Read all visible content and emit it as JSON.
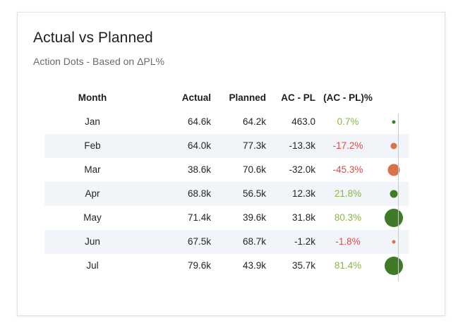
{
  "title": "Actual vs Planned",
  "subtitle": "Action Dots - Based on ΔPL%",
  "colors": {
    "positive_text": "#8ab44a",
    "negative_text": "#e04848",
    "positive_dot": "#3e7b27",
    "negative_dot": "#d9714a",
    "row_band": "#f1f5fa"
  },
  "chart_data": {
    "type": "table",
    "columns": [
      "Month",
      "Actual",
      "Planned",
      "AC - PL",
      "(AC - PL)%",
      ""
    ],
    "rows": [
      {
        "month": "Jan",
        "actual": "64.6k",
        "planned": "64.2k",
        "diff": "463.0",
        "pct": "0.7%",
        "pct_value": 0.7
      },
      {
        "month": "Feb",
        "actual": "64.0k",
        "planned": "77.3k",
        "diff": "-13.3k",
        "pct": "-17.2%",
        "pct_value": -17.2
      },
      {
        "month": "Mar",
        "actual": "38.6k",
        "planned": "70.6k",
        "diff": "-32.0k",
        "pct": "-45.3%",
        "pct_value": -45.3
      },
      {
        "month": "Apr",
        "actual": "68.8k",
        "planned": "56.5k",
        "diff": "12.3k",
        "pct": "21.8%",
        "pct_value": 21.8
      },
      {
        "month": "May",
        "actual": "71.4k",
        "planned": "39.6k",
        "diff": "31.8k",
        "pct": "80.3%",
        "pct_value": 80.3
      },
      {
        "month": "Jun",
        "actual": "67.5k",
        "planned": "68.7k",
        "diff": "-1.2k",
        "pct": "-1.8%",
        "pct_value": -1.8
      },
      {
        "month": "Jul",
        "actual": "79.6k",
        "planned": "43.9k",
        "diff": "35.7k",
        "pct": "81.4%",
        "pct_value": 81.4
      }
    ]
  }
}
